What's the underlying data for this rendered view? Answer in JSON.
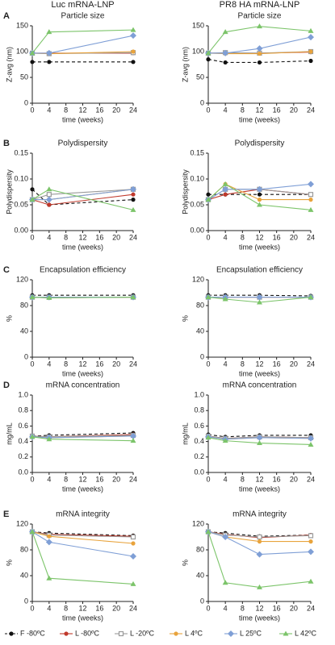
{
  "chart_data": [
    {
      "type": "line",
      "panel": "A",
      "heading": "Luc mRNA-LNP",
      "title": "Particle size",
      "xlabel": "time (weeks)",
      "ylabel": "Z-avg (nm)",
      "x": [
        0,
        4,
        24
      ],
      "xlim": [
        0,
        24
      ],
      "xticks": [
        0,
        4,
        8,
        12,
        16,
        20,
        24
      ],
      "ylim": [
        0,
        150
      ],
      "yticks": [
        0,
        50,
        100,
        150
      ],
      "series": [
        {
          "name": "F -80ºC",
          "color": "#111111",
          "marker": "circle",
          "dashed": true,
          "values": [
            80,
            80,
            80
          ]
        },
        {
          "name": "L -80ºC",
          "color": "#c0392b",
          "marker": "circle",
          "dashed": false,
          "values": [
            97,
            97,
            97
          ]
        },
        {
          "name": "L -20ºC",
          "color": "#9a9a9a",
          "marker": "square",
          "dashed": false,
          "values": [
            97,
            96,
            98
          ]
        },
        {
          "name": "L 4ºC",
          "color": "#e8a33c",
          "marker": "circle",
          "dashed": false,
          "values": [
            97,
            96,
            100
          ]
        },
        {
          "name": "L 25ºC",
          "color": "#7f9fd6",
          "marker": "diamond",
          "dashed": false,
          "values": [
            97,
            97,
            131
          ]
        },
        {
          "name": "L 42ºC",
          "color": "#7cc46a",
          "marker": "triangle",
          "dashed": false,
          "values": [
            97,
            138,
            142
          ]
        }
      ]
    },
    {
      "type": "line",
      "heading": "PR8 HA mRNA-LNP",
      "title": "Particle size",
      "xlabel": "time (weeks)",
      "ylabel": "Z-avg (nm)",
      "x": [
        0,
        4,
        12,
        24
      ],
      "xlim": [
        0,
        24
      ],
      "xticks": [
        0,
        4,
        8,
        12,
        16,
        20,
        24
      ],
      "ylim": [
        0,
        150
      ],
      "yticks": [
        0,
        50,
        100,
        150
      ],
      "series": [
        {
          "color": "#111111",
          "values": [
            85,
            79,
            79,
            82
          ]
        },
        {
          "color": "#c0392b",
          "values": [
            97,
            97,
            97,
            99
          ]
        },
        {
          "color": "#9a9a9a",
          "values": [
            97,
            98,
            97,
            100
          ]
        },
        {
          "color": "#e8a33c",
          "values": [
            97,
            96,
            96,
            100
          ]
        },
        {
          "color": "#7f9fd6",
          "values": [
            97,
            97,
            106,
            128
          ]
        },
        {
          "color": "#7cc46a",
          "values": [
            97,
            138,
            149,
            140
          ]
        }
      ]
    },
    {
      "type": "line",
      "panel": "B",
      "title": "Polydispersity",
      "xlabel": "time (weeks)",
      "ylabel": "Polydispersity",
      "x": [
        0,
        4,
        24
      ],
      "xlim": [
        0,
        24
      ],
      "xticks": [
        0,
        4,
        8,
        12,
        16,
        20,
        24
      ],
      "ylim": [
        0,
        0.15
      ],
      "yticks": [
        {
          "value": 0,
          "label": "0.00"
        },
        {
          "value": 0.05,
          "label": "0.05"
        },
        {
          "value": 0.1,
          "label": "0.10"
        },
        {
          "value": 0.15,
          "label": "0.15"
        }
      ],
      "series": [
        {
          "color": "#111111",
          "values": [
            0.08,
            0.05,
            0.06
          ]
        },
        {
          "color": "#c0392b",
          "values": [
            0.06,
            0.05,
            0.07
          ]
        },
        {
          "color": "#9a9a9a",
          "values": [
            0.06,
            0.07,
            0.08
          ]
        },
        {
          "color": "#e8a33c",
          "values": [
            0.06,
            0.06,
            0.08
          ]
        },
        {
          "color": "#7f9fd6",
          "values": [
            0.06,
            0.06,
            0.08
          ]
        },
        {
          "color": "#7cc46a",
          "values": [
            0.06,
            0.08,
            0.04
          ]
        }
      ]
    },
    {
      "type": "line",
      "title": "Polydispersity",
      "xlabel": "time (weeks)",
      "ylabel": "Polydispersity",
      "x": [
        0,
        4,
        12,
        24
      ],
      "xlim": [
        0,
        24
      ],
      "xticks": [
        0,
        4,
        8,
        12,
        16,
        20,
        24
      ],
      "ylim": [
        0,
        0.15
      ],
      "yticks": [
        {
          "value": 0,
          "label": "0.00"
        },
        {
          "value": 0.05,
          "label": "0.05"
        },
        {
          "value": 0.1,
          "label": "0.10"
        },
        {
          "value": 0.15,
          "label": "0.15"
        }
      ],
      "series": [
        {
          "color": "#111111",
          "values": [
            0.07,
            0.07,
            0.07,
            0.07
          ]
        },
        {
          "color": "#c0392b",
          "values": [
            0.06,
            0.07,
            0.08,
            0.07
          ]
        },
        {
          "color": "#9a9a9a",
          "values": [
            0.06,
            0.08,
            0.08,
            0.07
          ]
        },
        {
          "color": "#e8a33c",
          "values": [
            0.06,
            0.09,
            0.06,
            0.06
          ]
        },
        {
          "color": "#7f9fd6",
          "values": [
            0.06,
            0.08,
            0.08,
            0.09
          ]
        },
        {
          "color": "#7cc46a",
          "values": [
            0.06,
            0.09,
            0.05,
            0.04
          ]
        }
      ]
    },
    {
      "type": "line",
      "panel": "C",
      "title": "Encapsulation efficiency",
      "xlabel": "time (weeks)",
      "ylabel": "%",
      "x": [
        0,
        4,
        24
      ],
      "xlim": [
        0,
        24
      ],
      "xticks": [
        0,
        4,
        8,
        12,
        16,
        20,
        24
      ],
      "ylim": [
        0,
        120
      ],
      "yticks": [
        0,
        40,
        80,
        120
      ],
      "series": [
        {
          "color": "#111111",
          "values": [
            96,
            96,
            96
          ]
        },
        {
          "color": "#c0392b",
          "values": [
            93,
            92,
            93
          ]
        },
        {
          "color": "#9a9a9a",
          "values": [
            93,
            93,
            93
          ]
        },
        {
          "color": "#e8a33c",
          "values": [
            93,
            93,
            93
          ]
        },
        {
          "color": "#7f9fd6",
          "values": [
            93,
            93,
            93
          ]
        },
        {
          "color": "#7cc46a",
          "values": [
            93,
            92,
            93
          ]
        }
      ]
    },
    {
      "type": "line",
      "title": "Encapsulation efficiency",
      "xlabel": "time (weeks)",
      "ylabel": "%",
      "x": [
        0,
        4,
        12,
        24
      ],
      "xlim": [
        0,
        24
      ],
      "xticks": [
        0,
        4,
        8,
        12,
        16,
        20,
        24
      ],
      "ylim": [
        0,
        120
      ],
      "yticks": [
        0,
        40,
        80,
        120
      ],
      "series": [
        {
          "color": "#111111",
          "values": [
            96,
            96,
            96,
            95
          ]
        },
        {
          "color": "#c0392b",
          "values": [
            93,
            93,
            93,
            93
          ]
        },
        {
          "color": "#9a9a9a",
          "values": [
            93,
            93,
            93,
            93
          ]
        },
        {
          "color": "#e8a33c",
          "values": [
            93,
            93,
            93,
            93
          ]
        },
        {
          "color": "#7f9fd6",
          "values": [
            93,
            93,
            93,
            93
          ]
        },
        {
          "color": "#7cc46a",
          "values": [
            93,
            90,
            85,
            93
          ]
        }
      ]
    },
    {
      "type": "line",
      "panel": "D",
      "title": "mRNA concentration",
      "xlabel": "time (weeks)",
      "ylabel": "mg/mL",
      "x": [
        0,
        4,
        24
      ],
      "xlim": [
        0,
        24
      ],
      "xticks": [
        0,
        4,
        8,
        12,
        16,
        20,
        24
      ],
      "ylim": [
        0,
        1
      ],
      "yticks": [
        {
          "value": 0,
          "label": "0.0"
        },
        {
          "value": 0.2,
          "label": "0.2"
        },
        {
          "value": 0.4,
          "label": "0.4"
        },
        {
          "value": 0.6,
          "label": "0.6"
        },
        {
          "value": 0.8,
          "label": "0.8"
        },
        {
          "value": 1,
          "label": "1.0"
        }
      ],
      "series": [
        {
          "color": "#111111",
          "values": [
            0.47,
            0.48,
            0.51
          ]
        },
        {
          "color": "#c0392b",
          "values": [
            0.47,
            0.46,
            0.49
          ]
        },
        {
          "color": "#9a9a9a",
          "values": [
            0.47,
            0.46,
            0.48
          ]
        },
        {
          "color": "#e8a33c",
          "values": [
            0.46,
            0.45,
            0.47
          ]
        },
        {
          "color": "#7f9fd6",
          "values": [
            0.46,
            0.45,
            0.47
          ]
        },
        {
          "color": "#7cc46a",
          "values": [
            0.46,
            0.43,
            0.41
          ]
        }
      ]
    },
    {
      "type": "line",
      "title": "mRNA concentration",
      "xlabel": "time (weeks)",
      "ylabel": "mg/mL",
      "x": [
        0,
        4,
        12,
        24
      ],
      "xlim": [
        0,
        24
      ],
      "xticks": [
        0,
        4,
        8,
        12,
        16,
        20,
        24
      ],
      "ylim": [
        0,
        1
      ],
      "yticks": [
        {
          "value": 0,
          "label": "0.0"
        },
        {
          "value": 0.2,
          "label": "0.2"
        },
        {
          "value": 0.4,
          "label": "0.4"
        },
        {
          "value": 0.6,
          "label": "0.6"
        },
        {
          "value": 0.8,
          "label": "0.8"
        },
        {
          "value": 1,
          "label": "1.0"
        }
      ],
      "series": [
        {
          "color": "#111111",
          "values": [
            0.49,
            0.46,
            0.48,
            0.48
          ]
        },
        {
          "color": "#c0392b",
          "values": [
            0.47,
            0.44,
            0.46,
            0.45
          ]
        },
        {
          "color": "#9a9a9a",
          "values": [
            0.47,
            0.44,
            0.46,
            0.45
          ]
        },
        {
          "color": "#e8a33c",
          "values": [
            0.46,
            0.43,
            0.45,
            0.44
          ]
        },
        {
          "color": "#7f9fd6",
          "values": [
            0.46,
            0.43,
            0.45,
            0.44
          ]
        },
        {
          "color": "#7cc46a",
          "values": [
            0.45,
            0.41,
            0.38,
            0.36
          ]
        }
      ]
    },
    {
      "type": "line",
      "panel": "E",
      "title": "mRNA integrity",
      "xlabel": "time (weeks)",
      "ylabel": "%",
      "x": [
        0,
        4,
        24
      ],
      "xlim": [
        0,
        24
      ],
      "xticks": [
        0,
        4,
        8,
        12,
        16,
        20,
        24
      ],
      "ylim": [
        0,
        120
      ],
      "yticks": [
        0,
        40,
        80,
        120
      ],
      "series": [
        {
          "color": "#111111",
          "values": [
            108,
            106,
            102
          ]
        },
        {
          "color": "#c0392b",
          "values": [
            108,
            104,
            101
          ]
        },
        {
          "color": "#9a9a9a",
          "values": [
            108,
            103,
            100
          ]
        },
        {
          "color": "#e8a33c",
          "values": [
            108,
            101,
            90
          ]
        },
        {
          "color": "#7f9fd6",
          "values": [
            108,
            92,
            70
          ]
        },
        {
          "color": "#7cc46a",
          "values": [
            108,
            36,
            27
          ]
        }
      ]
    },
    {
      "type": "line",
      "title": "mRNA integrity",
      "xlabel": "time (weeks)",
      "ylabel": "%",
      "x": [
        0,
        4,
        12,
        24
      ],
      "xlim": [
        0,
        24
      ],
      "xticks": [
        0,
        4,
        8,
        12,
        16,
        20,
        24
      ],
      "ylim": [
        0,
        120
      ],
      "yticks": [
        0,
        40,
        80,
        120
      ],
      "series": [
        {
          "color": "#111111",
          "values": [
            108,
            106,
            101,
            103
          ]
        },
        {
          "color": "#c0392b",
          "values": [
            108,
            104,
            99,
            103
          ]
        },
        {
          "color": "#9a9a9a",
          "values": [
            108,
            103,
            100,
            102
          ]
        },
        {
          "color": "#e8a33c",
          "values": [
            108,
            100,
            93,
            93
          ]
        },
        {
          "color": "#7f9fd6",
          "values": [
            108,
            100,
            73,
            77
          ]
        },
        {
          "color": "#7cc46a",
          "values": [
            108,
            29,
            22,
            31
          ]
        }
      ]
    }
  ]
}
